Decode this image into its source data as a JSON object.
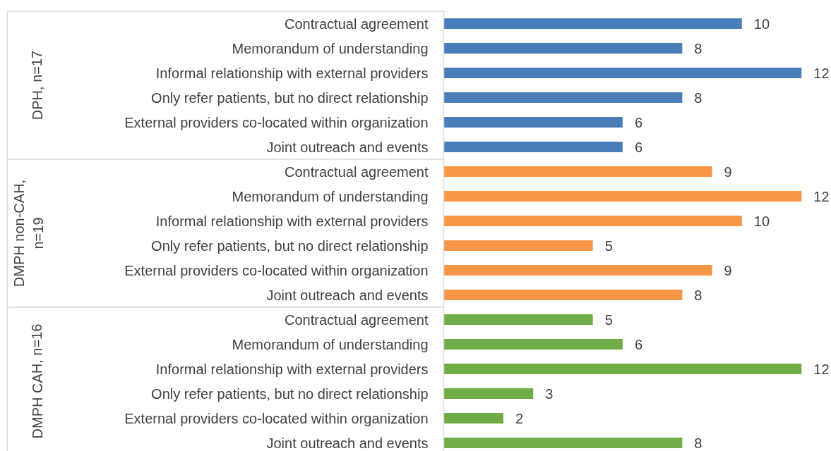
{
  "chart_data": {
    "type": "bar",
    "orientation": "horizontal",
    "data_labels": true,
    "tick_labels": "y",
    "xlim": [
      0,
      13
    ],
    "categories": [
      "Contractual agreement",
      "Memorandum of understanding",
      "Informal relationship with external providers",
      "Only refer patients, but no direct relationship",
      "External providers co-located within organization",
      "Joint outreach and events",
      "Contractual agreement",
      "Memorandum of understanding",
      "Informal relationship with external providers",
      "Only refer patients, but no direct relationship",
      "External providers co-located within organization",
      "Joint outreach and events",
      "Contractual agreement",
      "Memorandum of understanding",
      "Informal relationship with external providers",
      "Only refer patients, but no direct relationship",
      "External providers co-located within organization",
      "Joint outreach and events"
    ],
    "values": [
      10,
      8,
      12,
      8,
      6,
      6,
      9,
      12,
      10,
      5,
      9,
      8,
      5,
      6,
      12,
      3,
      2,
      8
    ],
    "colors": [
      "#4a7ebb",
      "#4a7ebb",
      "#4a7ebb",
      "#4a7ebb",
      "#4a7ebb",
      "#4a7ebb",
      "#f79646",
      "#f79646",
      "#f79646",
      "#f79646",
      "#f79646",
      "#f79646",
      "#70ad47",
      "#70ad47",
      "#70ad47",
      "#70ad47",
      "#70ad47",
      "#70ad47"
    ],
    "annotations": [
      "DPH, n=17",
      "DMPH non-CAH, n=19",
      "DMPH CAH, n=16"
    ]
  }
}
